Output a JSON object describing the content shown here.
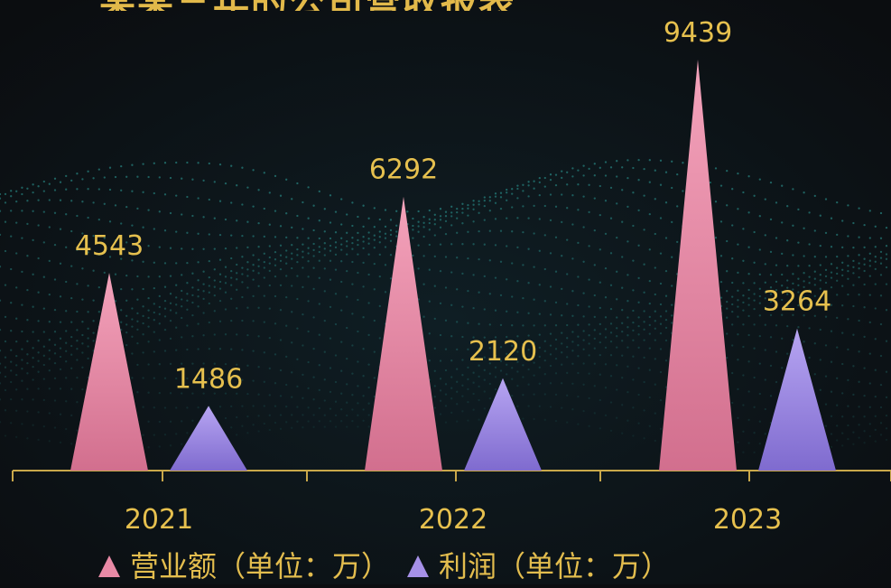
{
  "title": "某某三年的公司营收报表",
  "colors": {
    "background": "#0b0d10",
    "wave": "#2fa6a0",
    "axis": "#c9a84a",
    "text": "#e6c04e",
    "series_pink": "#e98aa6",
    "series_purple": "#a691e8"
  },
  "chart_data": {
    "type": "bar",
    "categories": [
      "2021",
      "2022",
      "2023"
    ],
    "series": [
      {
        "name": "营业额（单位：万）",
        "values": [
          4543,
          6292,
          9439
        ]
      },
      {
        "name": "利润（单位：万）",
        "values": [
          1486,
          2120,
          3264
        ]
      }
    ],
    "data_labels": true,
    "legend_position": "bottom",
    "ylim": [
      0,
      10000
    ],
    "grid": false
  }
}
